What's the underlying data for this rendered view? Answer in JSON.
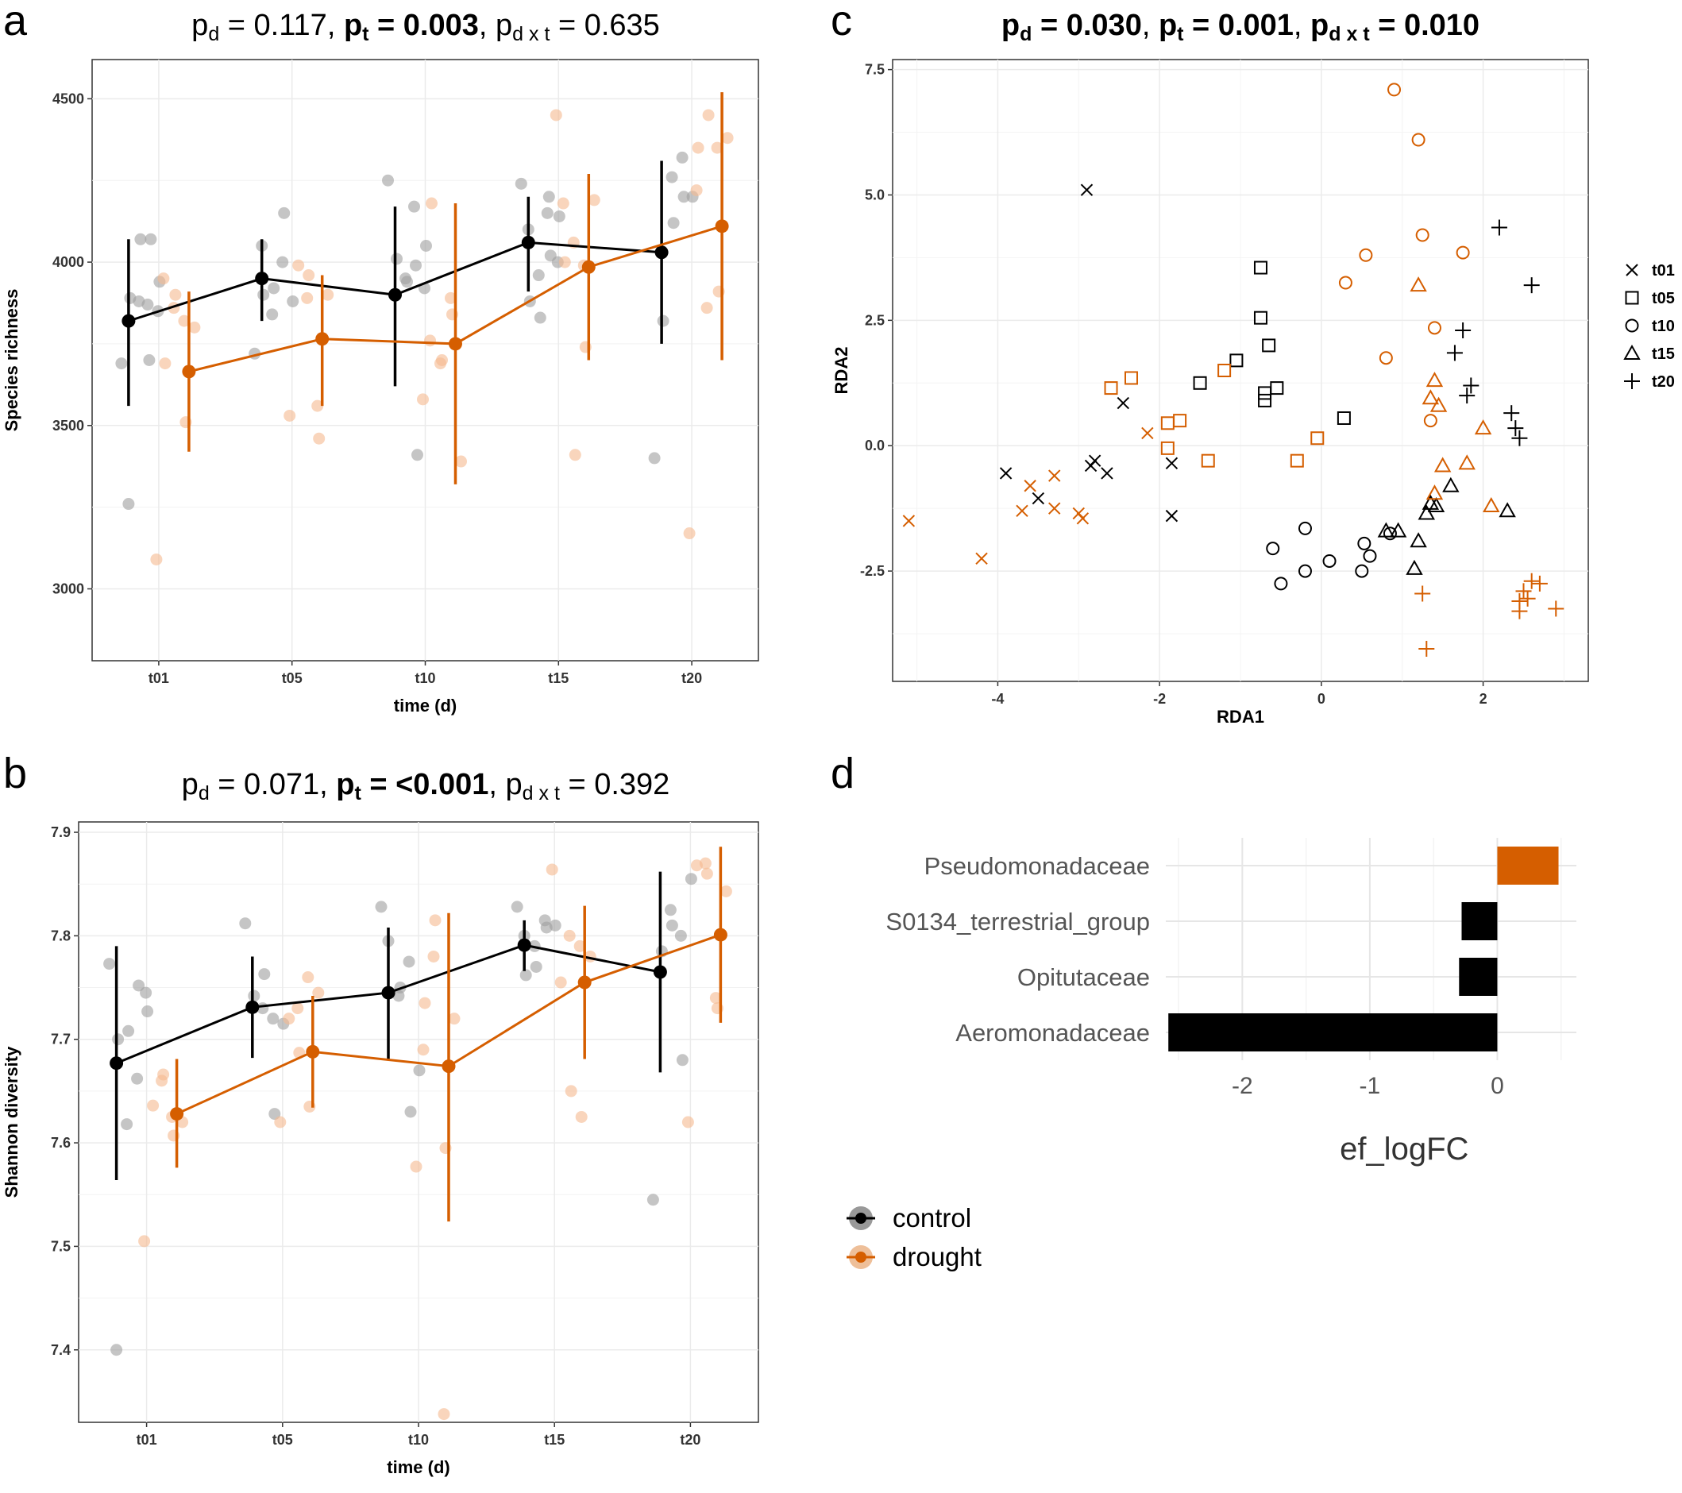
{
  "panels": {
    "a": {
      "letter": "a",
      "pvalues": [
        {
          "sym": "p",
          "sub": "d",
          "eq": " = 0.117",
          "bold": false
        },
        {
          "sym": "p",
          "sub": "t",
          "eq": " = 0.003",
          "bold": true
        },
        {
          "sym": "p",
          "sub": "d x t",
          "eq": " = 0.635",
          "bold": false
        }
      ]
    },
    "b": {
      "letter": "b",
      "pvalues": [
        {
          "sym": "p",
          "sub": "d",
          "eq": " = 0.071",
          "bold": false
        },
        {
          "sym": "p",
          "sub": "t",
          "eq": " =  <0.001",
          "bold": true
        },
        {
          "sym": "p",
          "sub": "d x t",
          "eq": " = 0.392",
          "bold": false
        }
      ]
    },
    "c": {
      "letter": "c",
      "pvalues": [
        {
          "sym": "p",
          "sub": "d",
          "eq": " = 0.030",
          "bold": true
        },
        {
          "sym": "p",
          "sub": "t",
          "eq": " = 0.001",
          "bold": true
        },
        {
          "sym": "p",
          "sub": "d x t",
          "eq": " = 0.010",
          "bold": true
        }
      ]
    },
    "d": {
      "letter": "d"
    }
  },
  "colors": {
    "control": "#000000",
    "drought": "#d55e00",
    "control_light": "#9e9e9e",
    "drought_light": "#f5b98f",
    "grid": "#ebebeb"
  },
  "common_legend": {
    "items": [
      {
        "label": "control",
        "color": "#000000"
      },
      {
        "label": "drought",
        "color": "#d55e00"
      }
    ]
  },
  "chart_data": [
    {
      "id": "a",
      "type": "line",
      "xlabel": "time (d)",
      "ylabel": "Species richness",
      "categories": [
        "t01",
        "t05",
        "t10",
        "t15",
        "t20"
      ],
      "ylim": [
        2780,
        4620
      ],
      "yticks": [
        3000,
        3500,
        4000,
        4500
      ],
      "series": [
        {
          "name": "control",
          "mean": [
            3820,
            3950,
            3900,
            4060,
            4030
          ],
          "lower": [
            3560,
            3820,
            3620,
            3910,
            3750
          ],
          "upper": [
            4070,
            4070,
            4170,
            4200,
            4310
          ]
        },
        {
          "name": "drought",
          "mean": [
            3665,
            3765,
            3750,
            3985,
            4110
          ],
          "lower": [
            3420,
            3560,
            3320,
            3700,
            3700
          ],
          "upper": [
            3910,
            3960,
            4180,
            4270,
            4520
          ]
        }
      ],
      "points": {
        "control": [
          [
            3690,
            4070,
            4070,
            3890,
            3940,
            3700,
            3880,
            3260,
            3850,
            3870
          ],
          [
            3720,
            4150,
            3920,
            3900,
            3880,
            4000,
            3840,
            4050
          ],
          [
            4250,
            3410,
            3940,
            4010,
            4050,
            3990,
            3950,
            3900,
            3920,
            4170
          ],
          [
            4240,
            4020,
            3830,
            3880,
            4140,
            4200,
            3960,
            4100,
            4000,
            4150
          ],
          [
            3400,
            4200,
            4120,
            3820,
            4200,
            4320,
            4260
          ]
        ],
        "drought": [
          [
            3090,
            3510,
            3900,
            3690,
            3800,
            3820,
            3860,
            3950
          ],
          [
            3530,
            3460,
            3960,
            3990,
            3900,
            3560,
            3890
          ],
          [
            3580,
            3840,
            3700,
            4180,
            3390,
            3890,
            3690,
            3760
          ],
          [
            4450,
            3740,
            3410,
            4000,
            4190,
            3990,
            4060,
            4180
          ],
          [
            3170,
            3910,
            4450,
            4350,
            4380,
            4350,
            3860,
            4220
          ]
        ]
      }
    },
    {
      "id": "b",
      "type": "line",
      "xlabel": "time (d)",
      "ylabel": "Shannon diversity",
      "categories": [
        "t01",
        "t05",
        "t10",
        "t15",
        "t20"
      ],
      "ylim": [
        7.33,
        7.91
      ],
      "yticks": [
        7.4,
        7.5,
        7.6,
        7.7,
        7.8,
        7.9
      ],
      "series": [
        {
          "name": "control",
          "mean": [
            7.677,
            7.731,
            7.745,
            7.791,
            7.765
          ],
          "lower": [
            7.564,
            7.682,
            7.681,
            7.766,
            7.668
          ],
          "upper": [
            7.79,
            7.78,
            7.808,
            7.815,
            7.862
          ]
        },
        {
          "name": "drought",
          "mean": [
            7.628,
            7.688,
            7.674,
            7.755,
            7.801
          ],
          "lower": [
            7.576,
            7.634,
            7.524,
            7.681,
            7.716
          ],
          "upper": [
            7.681,
            7.742,
            7.822,
            7.829,
            7.886
          ]
        },
        {
          "name": "",
          "mean": [],
          "lower": [],
          "upper": []
        }
      ],
      "points": {
        "control": [
          [
            7.773,
            7.752,
            7.708,
            7.7,
            7.727,
            7.662,
            7.618,
            7.4,
            7.745
          ],
          [
            7.812,
            7.628,
            7.763,
            7.742,
            7.715,
            7.72,
            7.73
          ],
          [
            7.828,
            7.63,
            7.75,
            7.745,
            7.67,
            7.775,
            7.742,
            7.795
          ],
          [
            7.828,
            7.808,
            7.77,
            7.762,
            7.81,
            7.815,
            7.79,
            7.8
          ],
          [
            7.545,
            7.68,
            7.81,
            7.785,
            7.855,
            7.8,
            7.825
          ]
        ],
        "drought": [
          [
            7.505,
            7.607,
            7.666,
            7.636,
            7.62,
            7.625,
            7.66
          ],
          [
            7.62,
            7.635,
            7.687,
            7.72,
            7.745,
            7.76,
            7.73
          ],
          [
            7.577,
            7.595,
            7.815,
            7.735,
            7.72,
            7.338,
            7.78,
            7.69
          ],
          [
            7.864,
            7.625,
            7.65,
            7.755,
            7.78,
            7.79,
            7.8
          ],
          [
            7.62,
            7.73,
            7.86,
            7.868,
            7.843,
            7.74,
            7.87
          ]
        ]
      }
    },
    {
      "id": "c",
      "type": "scatter",
      "xlabel": "RDA1",
      "ylabel": "RDA2",
      "xlim": [
        -5.3,
        3.3
      ],
      "ylim": [
        -4.7,
        7.7
      ],
      "xticks": [
        -4,
        -2,
        0,
        2
      ],
      "yticks": [
        -2.5,
        0.0,
        2.5,
        5.0,
        7.5
      ],
      "ytick_labels": [
        "-2.5",
        "0.0",
        "2.5",
        "5.0",
        "7.5"
      ],
      "legend": {
        "position": "right",
        "items": [
          {
            "label": "t01",
            "shape": "x"
          },
          {
            "label": "t05",
            "shape": "square"
          },
          {
            "label": "t10",
            "shape": "circle"
          },
          {
            "label": "t15",
            "shape": "triangle"
          },
          {
            "label": "t20",
            "shape": "plus"
          }
        ]
      },
      "series": [
        {
          "name": "control",
          "points": [
            [
              "x",
              -2.9,
              5.1
            ],
            [
              "x",
              -3.9,
              -0.55
            ],
            [
              "x",
              -3.5,
              -1.05
            ],
            [
              "x",
              -2.85,
              -0.4
            ],
            [
              "x",
              -2.8,
              -0.3
            ],
            [
              "x",
              -2.65,
              -0.55
            ],
            [
              "x",
              -2.45,
              0.85
            ],
            [
              "x",
              -1.85,
              -0.35
            ],
            [
              "x",
              -1.85,
              -1.4
            ],
            [
              "square",
              -0.75,
              3.55
            ],
            [
              "square",
              -0.75,
              2.55
            ],
            [
              "square",
              -0.65,
              2.0
            ],
            [
              "square",
              -0.7,
              0.9
            ],
            [
              "square",
              -0.7,
              1.05
            ],
            [
              "square",
              -0.55,
              1.15
            ],
            [
              "square",
              -1.05,
              1.7
            ],
            [
              "square",
              -1.5,
              1.25
            ],
            [
              "square",
              0.28,
              0.55
            ],
            [
              "circle",
              -0.2,
              -1.65
            ],
            [
              "circle",
              -0.6,
              -2.05
            ],
            [
              "circle",
              -0.5,
              -2.75
            ],
            [
              "circle",
              -0.2,
              -2.5
            ],
            [
              "circle",
              0.1,
              -2.3
            ],
            [
              "circle",
              0.5,
              -2.5
            ],
            [
              "circle",
              0.53,
              -1.95
            ],
            [
              "circle",
              0.6,
              -2.2
            ],
            [
              "circle",
              0.85,
              -1.75
            ],
            [
              "triangle",
              0.8,
              -1.7
            ],
            [
              "triangle",
              0.95,
              -1.7
            ],
            [
              "triangle",
              1.15,
              -2.45
            ],
            [
              "triangle",
              1.2,
              -1.9
            ],
            [
              "triangle",
              1.3,
              -1.35
            ],
            [
              "triangle",
              1.35,
              -1.15
            ],
            [
              "triangle",
              1.42,
              -1.2
            ],
            [
              "triangle",
              1.6,
              -0.8
            ],
            [
              "triangle",
              2.3,
              -1.3
            ],
            [
              "plus",
              2.2,
              4.35
            ],
            [
              "plus",
              2.6,
              3.2
            ],
            [
              "plus",
              1.75,
              2.3
            ],
            [
              "plus",
              1.65,
              1.85
            ],
            [
              "plus",
              1.8,
              1.0
            ],
            [
              "plus",
              1.85,
              1.2
            ],
            [
              "plus",
              2.35,
              0.65
            ],
            [
              "plus",
              2.4,
              0.35
            ],
            [
              "plus",
              2.45,
              0.15
            ]
          ]
        },
        {
          "name": "drought",
          "points": [
            [
              "x",
              -5.1,
              -1.5
            ],
            [
              "x",
              -4.2,
              -2.25
            ],
            [
              "x",
              -3.6,
              -0.8
            ],
            [
              "x",
              -3.7,
              -1.3
            ],
            [
              "x",
              -3.3,
              -0.6
            ],
            [
              "x",
              -3.3,
              -1.25
            ],
            [
              "x",
              -3.0,
              -1.35
            ],
            [
              "x",
              -2.95,
              -1.45
            ],
            [
              "x",
              -2.15,
              0.25
            ],
            [
              "square",
              -2.6,
              1.15
            ],
            [
              "square",
              -2.35,
              1.35
            ],
            [
              "square",
              -1.9,
              0.45
            ],
            [
              "square",
              -1.75,
              0.5
            ],
            [
              "square",
              -1.9,
              -0.05
            ],
            [
              "square",
              -1.4,
              -0.3
            ],
            [
              "square",
              -1.2,
              1.5
            ],
            [
              "square",
              -0.3,
              -0.3
            ],
            [
              "square",
              -0.05,
              0.15
            ],
            [
              "circle",
              0.9,
              7.1
            ],
            [
              "circle",
              1.2,
              6.1
            ],
            [
              "circle",
              1.25,
              4.2
            ],
            [
              "circle",
              1.75,
              3.85
            ],
            [
              "circle",
              0.55,
              3.8
            ],
            [
              "circle",
              0.3,
              3.25
            ],
            [
              "circle",
              1.4,
              2.35
            ],
            [
              "circle",
              0.8,
              1.75
            ],
            [
              "circle",
              1.35,
              0.5
            ],
            [
              "triangle",
              1.2,
              3.2
            ],
            [
              "triangle",
              1.4,
              1.3
            ],
            [
              "triangle",
              1.35,
              0.95
            ],
            [
              "triangle",
              1.45,
              0.8
            ],
            [
              "triangle",
              1.5,
              -0.4
            ],
            [
              "triangle",
              1.8,
              -0.35
            ],
            [
              "triangle",
              2.0,
              0.35
            ],
            [
              "triangle",
              1.4,
              -0.95
            ],
            [
              "triangle",
              2.1,
              -1.2
            ],
            [
              "plus",
              1.25,
              -2.95
            ],
            [
              "plus",
              1.3,
              -4.05
            ],
            [
              "plus",
              2.45,
              -3.3
            ],
            [
              "plus",
              2.5,
              -2.9
            ],
            [
              "plus",
              2.55,
              -3.05
            ],
            [
              "plus",
              2.6,
              -2.7
            ],
            [
              "plus",
              2.7,
              -2.75
            ],
            [
              "plus",
              2.9,
              -3.25
            ],
            [
              "plus",
              2.45,
              -3.1
            ]
          ]
        }
      ]
    },
    {
      "id": "d",
      "type": "bar",
      "orientation": "horizontal",
      "xlabel": "ef_logFC",
      "categories": [
        "Pseudomonadaceae",
        "S0134_terrestrial_group",
        "Opitutaceae",
        "Aeromonadaceae"
      ],
      "values": [
        0.48,
        -0.28,
        -0.3,
        -2.58
      ],
      "bar_colors": [
        "#d55e00",
        "#000000",
        "#000000",
        "#000000"
      ],
      "xlim": [
        -2.6,
        0.62
      ],
      "xticks": [
        -2,
        -1,
        0
      ],
      "xtick_labels": [
        "-2",
        "-1",
        "0"
      ]
    }
  ]
}
